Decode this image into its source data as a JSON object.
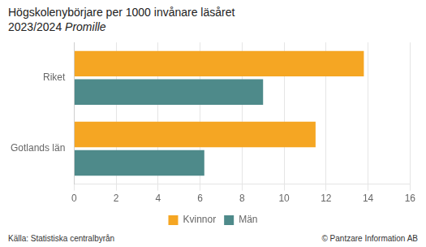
{
  "chart_data": {
    "type": "bar",
    "orientation": "horizontal",
    "title": [
      "Högskolenybörjare per 1000 invånare läsåret",
      "2023/2024"
    ],
    "subtitle": "Promille",
    "annotations": [
      "Källa: Statistiska centralbyrån",
      "© Pantzare Information AB"
    ],
    "categories": [
      "Riket",
      "Gotlands län"
    ],
    "series": [
      {
        "name": "Kvinnor",
        "color": "#F5A623",
        "values": [
          13.8,
          11.5
        ]
      },
      {
        "name": "Män",
        "color": "#4E8A8A",
        "values": [
          9.0,
          6.2
        ]
      }
    ],
    "xlim": [
      0,
      16
    ],
    "xticks": [
      0,
      2,
      4,
      6,
      8,
      10,
      12,
      14,
      16
    ],
    "grid": true,
    "legend": "bottom"
  }
}
